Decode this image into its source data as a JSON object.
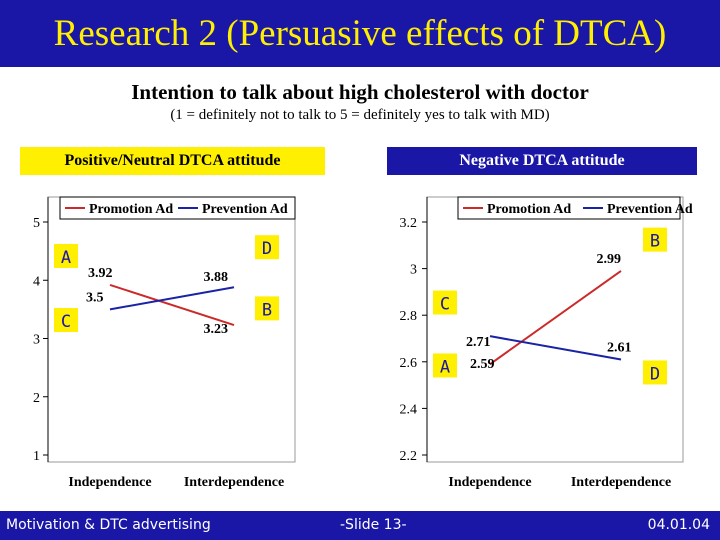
{
  "header": {
    "title": "Research 2 (Persuasive effects of DTCA)",
    "subtitle": "Intention to talk about high cholesterol with doctor",
    "scale_note": "(1 = definitely not to talk to 5 = definitely yes to talk with MD)"
  },
  "groups": {
    "left_label": "Positive/Neutral DTCA attitude",
    "right_label": "Negative DTCA attitude"
  },
  "colors": {
    "title_bar": "#1a16a6",
    "title_text": "#ffef00",
    "promotion": "#cc2a2a",
    "prevention": "#1a22a6"
  },
  "chart_data": [
    {
      "type": "line",
      "group": "Positive/Neutral DTCA attitude",
      "categories": [
        "Independence",
        "Interdependence"
      ],
      "series": [
        {
          "name": "Promotion Ad",
          "values": [
            3.92,
            3.23
          ],
          "labels": [
            "3.92",
            "3.23"
          ]
        },
        {
          "name": "Prevention Ad",
          "values": [
            3.5,
            3.88
          ],
          "labels": [
            "3.5",
            "3.88"
          ]
        }
      ],
      "ylim": [
        1,
        5
      ],
      "yticks": [
        "1",
        "2",
        "3",
        "4",
        "5"
      ],
      "grid": false,
      "legend": "top",
      "markers": [
        {
          "text": "A",
          "x": "Independence",
          "y": 4.4
        },
        {
          "text": "C",
          "x": "Independence",
          "y": 3.3
        },
        {
          "text": "D",
          "x": "Interdependence",
          "y": 4.55
        },
        {
          "text": "B",
          "x": "Interdependence",
          "y": 3.5
        }
      ]
    },
    {
      "type": "line",
      "group": "Negative DTCA attitude",
      "categories": [
        "Independence",
        "Interdependence"
      ],
      "series": [
        {
          "name": "Promotion Ad",
          "values": [
            2.59,
            2.99
          ],
          "labels": [
            "2.59",
            "2.99"
          ]
        },
        {
          "name": "Prevention Ad",
          "values": [
            2.71,
            2.61
          ],
          "labels": [
            "2.71",
            "2.61"
          ]
        }
      ],
      "ylim": [
        2.2,
        3.2
      ],
      "yticks": [
        "2.2",
        "2.4",
        "2.6",
        "2.8",
        "3",
        "3.2"
      ],
      "grid": false,
      "legend": "top",
      "markers": [
        {
          "text": "A",
          "x": "Independence",
          "y": 2.58
        },
        {
          "text": "C",
          "x": "Independence",
          "y": 2.85
        },
        {
          "text": "B",
          "x": "Interdependence",
          "y": 3.12
        },
        {
          "text": "D",
          "x": "Interdependence",
          "y": 2.55
        }
      ]
    }
  ],
  "footer": {
    "left": "Motivation & DTC advertising",
    "middle": "-Slide 13-",
    "right": "04.01.04"
  }
}
